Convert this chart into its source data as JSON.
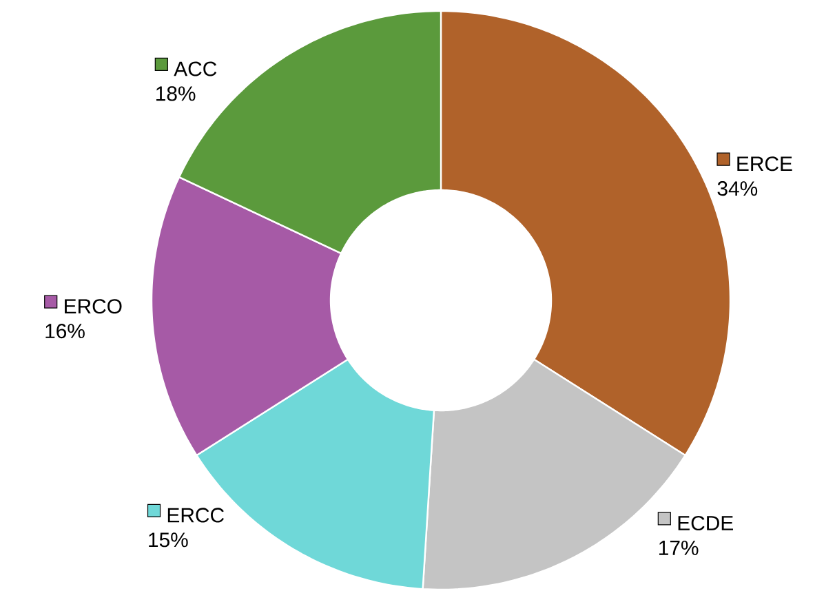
{
  "chart_data": {
    "type": "donut",
    "categories": [
      "ERCE",
      "ECDE",
      "ERCC",
      "ERCO",
      "ACC"
    ],
    "values": [
      34,
      17,
      15,
      16,
      18
    ],
    "value_labels": [
      "34%",
      "17%",
      "15%",
      "16%",
      "18%"
    ],
    "legend": "top left",
    "colors": [
      "#b0622a",
      "#c4c4c4",
      "#6fd8d8",
      "#a65aa6",
      "#5b9a3c"
    ]
  }
}
